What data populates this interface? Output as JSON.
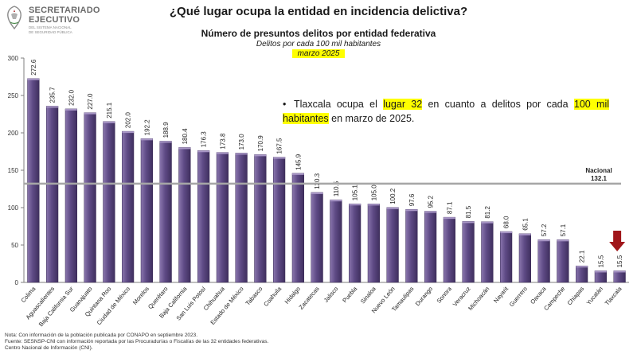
{
  "header": {
    "logo_line1": "SECRETARIADO",
    "logo_line2": "EJECUTIVO",
    "logo_line3": "DEL SISTEMA NACIONAL",
    "logo_line4": "DE SEGURIDAD PÚBLICA",
    "main_title": "¿Qué lugar ocupa la entidad en incidencia delictiva?"
  },
  "callout": {
    "part1": "Tlaxcala ocupa el",
    "highlight1": "lugar 32",
    "part2": "en cuanto a delitos por cada",
    "highlight2": "100 mil habitantes",
    "part3": "en marzo de 2025."
  },
  "notes": [
    "Nota: Con información de la población publicada por CONAPO en septiembre 2023.",
    "Fuente: SESNSP-CNI con información reportada por las Procuradurías o Fiscalías de las 32 entidades federativas.",
    "Centro Nacional de Información (CNI)."
  ],
  "colors": {
    "bar": "#5e4a85",
    "bar_light": "#8a76ad",
    "bar_dark": "#3f2f5e",
    "reference_line": "#a6a6a6",
    "highlight": "#ffff00",
    "arrow": "#a0161a"
  },
  "chart_data": {
    "type": "bar",
    "title": "Número de presuntos delitos por entidad federativa",
    "subtitle": "Delitos por cada 100 mil habitantes",
    "period": "marzo 2025",
    "categories": [
      "Colima",
      "Aguascalientes",
      "Baja California Sur",
      "Guanajuato",
      "Quintana Roo",
      "Ciudad de México",
      "Morelos",
      "Querétaro",
      "Baja California",
      "San Luis Potosí",
      "Chihuahua",
      "Estado de México",
      "Tabasco",
      "Coahuila",
      "Hidalgo",
      "Zacatecas",
      "Jalisco",
      "Puebla",
      "Sinaloa",
      "Nuevo León",
      "Tamaulipas",
      "Durango",
      "Sonora",
      "Veracruz",
      "Michoacán",
      "Nayarit",
      "Guerrero",
      "Oaxaca",
      "Campeche",
      "Chiapas",
      "Yucatán",
      "Tlaxcala"
    ],
    "values": [
      272.6,
      235.7,
      232.0,
      227.0,
      215.1,
      202.0,
      192.2,
      188.9,
      180.4,
      176.3,
      173.8,
      173.0,
      170.9,
      167.5,
      145.9,
      120.3,
      110.5,
      105.1,
      105.0,
      100.2,
      97.6,
      95.2,
      87.1,
      81.5,
      81.2,
      68.0,
      65.1,
      57.2,
      57.1,
      22.1,
      15.5,
      15.5
    ],
    "value_labels": [
      "272.6",
      "235.7",
      "232.0",
      "227.0",
      "215.1",
      "202.0",
      "192.2",
      "188.9",
      "180.4",
      "176.3",
      "173.8",
      "173.0",
      "170.9",
      "167.5",
      "145.9",
      "120.3",
      "110.5",
      "105.1",
      "105.0",
      "100.2",
      "97.6",
      "95.2",
      "87.1",
      "81.5",
      "81.2",
      "68.0",
      "65.1",
      "57.2",
      "57.1",
      "22.1",
      "15.5",
      "15.5"
    ],
    "yticks": [
      0,
      50,
      100,
      150,
      200,
      250,
      300
    ],
    "ylim": [
      0,
      300
    ],
    "reference_line": {
      "label": "Nacional",
      "value": 132.1,
      "value_label": "132.1"
    },
    "highlight_category": "Tlaxcala",
    "grid": false,
    "legend": "none"
  }
}
